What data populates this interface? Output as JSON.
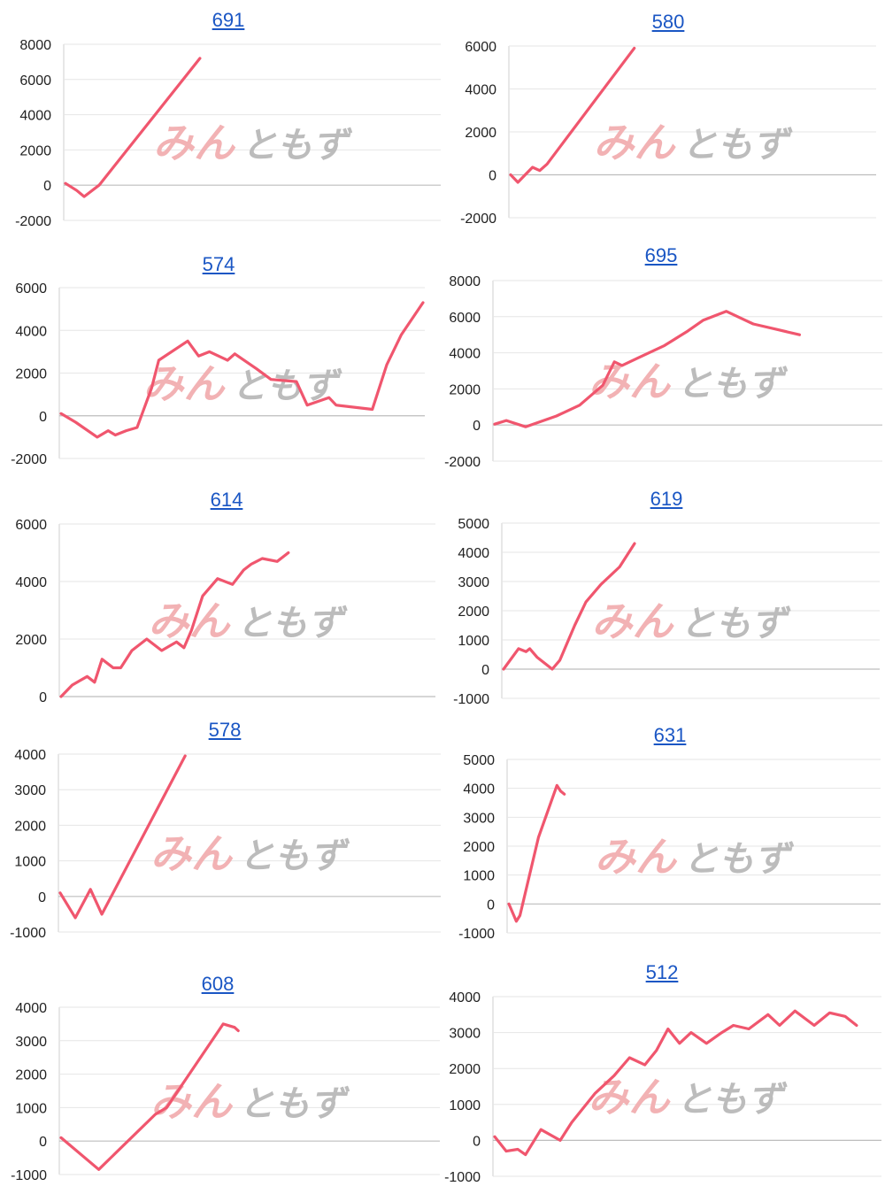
{
  "colors": {
    "series": "#f0566e",
    "link": "#1a56c4",
    "watermark_pink": "#f2aeb0",
    "watermark_gray": "#b9b9b9"
  },
  "watermark": {
    "part1": "みん",
    "part2": "ともず"
  },
  "chart_data": [
    {
      "type": "line",
      "title": "691",
      "ylim": [
        -2000,
        8000
      ],
      "yticks": [
        8000,
        6000,
        4000,
        2000,
        0,
        -2000
      ],
      "grid": true,
      "series": [
        {
          "x": [
            0,
            3,
            5,
            9,
            36
          ],
          "values": [
            100,
            -300,
            -650,
            0,
            7200
          ]
        }
      ]
    },
    {
      "type": "line",
      "title": "580",
      "ylim": [
        -2000,
        6000
      ],
      "yticks": [
        6000,
        4000,
        2000,
        0,
        -2000
      ],
      "grid": true,
      "series": [
        {
          "x": [
            0,
            2,
            4,
            6,
            8,
            10,
            34
          ],
          "values": [
            0,
            -350,
            0,
            350,
            200,
            500,
            5900
          ]
        }
      ]
    },
    {
      "type": "line",
      "title": "574",
      "ylim": [
        -2000,
        6000
      ],
      "yticks": [
        6000,
        4000,
        2000,
        0,
        -2000
      ],
      "grid": true,
      "series": [
        {
          "x": [
            0,
            4,
            10,
            13,
            15,
            18,
            21,
            25,
            27,
            35,
            38,
            41,
            46,
            48,
            54,
            58,
            65,
            68,
            74,
            76,
            86,
            90,
            94,
            100
          ],
          "values": [
            100,
            -300,
            -1000,
            -700,
            -900,
            -700,
            -550,
            1300,
            2600,
            3500,
            2800,
            3000,
            2600,
            2900,
            2200,
            1700,
            1600,
            500,
            850,
            500,
            300,
            2400,
            3800,
            5300
          ]
        }
      ]
    },
    {
      "type": "line",
      "title": "695",
      "ylim": [
        -2000,
        8000
      ],
      "yticks": [
        8000,
        6000,
        4000,
        2000,
        0,
        -2000
      ],
      "grid": true,
      "series": [
        {
          "x": [
            0,
            3,
            8,
            16,
            22,
            28,
            31,
            33,
            37,
            44,
            50,
            54,
            60,
            65,
            67,
            73,
            79
          ],
          "values": [
            50,
            250,
            -100,
            500,
            1100,
            2200,
            3500,
            3300,
            3700,
            4400,
            5200,
            5800,
            6300,
            5800,
            5600,
            5300,
            5000
          ]
        }
      ]
    },
    {
      "type": "line",
      "title": "614",
      "ylim": [
        0,
        6000
      ],
      "yticks": [
        6000,
        4000,
        2000,
        0
      ],
      "grid": true,
      "series": [
        {
          "x": [
            0,
            3,
            5,
            7,
            9,
            11,
            14,
            16,
            19,
            23,
            27,
            31,
            33,
            35,
            38,
            42,
            46,
            49,
            51,
            54,
            58,
            61
          ],
          "values": [
            0,
            400,
            550,
            700,
            500,
            1300,
            1000,
            1000,
            1600,
            2000,
            1600,
            1900,
            1700,
            2300,
            3500,
            4100,
            3900,
            4400,
            4600,
            4800,
            4700,
            5000
          ]
        }
      ]
    },
    {
      "type": "line",
      "title": "619",
      "ylim": [
        -1000,
        5000
      ],
      "yticks": [
        5000,
        4000,
        3000,
        2000,
        1000,
        0,
        -1000
      ],
      "grid": true,
      "series": [
        {
          "x": [
            0,
            4,
            6,
            7,
            9,
            13,
            15,
            19,
            22,
            26,
            31,
            35
          ],
          "values": [
            0,
            700,
            600,
            700,
            400,
            0,
            300,
            1500,
            2300,
            2900,
            3500,
            4300
          ]
        }
      ]
    },
    {
      "type": "line",
      "title": "578",
      "ylim": [
        -1000,
        4000
      ],
      "yticks": [
        4000,
        3000,
        2000,
        1000,
        0,
        -1000
      ],
      "grid": true,
      "series": [
        {
          "x": [
            0,
            4,
            8,
            11,
            33
          ],
          "values": [
            100,
            -600,
            200,
            -500,
            3950
          ]
        }
      ]
    },
    {
      "type": "line",
      "title": "631",
      "ylim": [
        -1000,
        5000
      ],
      "yticks": [
        5000,
        4000,
        3000,
        2000,
        1000,
        0,
        -1000
      ],
      "grid": true,
      "series": [
        {
          "x": [
            0,
            2,
            3,
            8,
            13,
            14,
            15
          ],
          "values": [
            0,
            -600,
            -400,
            2300,
            4100,
            3900,
            3800
          ]
        }
      ]
    },
    {
      "type": "line",
      "title": "608",
      "ylim": [
        -1000,
        4000
      ],
      "yticks": [
        4000,
        3000,
        2000,
        1000,
        0,
        -1000
      ],
      "grid": true,
      "series": [
        {
          "x": [
            0,
            10,
            25,
            28,
            43,
            46,
            47
          ],
          "values": [
            100,
            -850,
            800,
            1000,
            3500,
            3400,
            3300
          ]
        }
      ]
    },
    {
      "type": "line",
      "title": "512",
      "ylim": [
        -1000,
        4000
      ],
      "yticks": [
        4000,
        3000,
        2000,
        1000,
        0,
        -1000
      ],
      "grid": true,
      "series": [
        {
          "x": [
            0,
            3,
            6,
            8,
            12,
            17,
            20,
            26,
            31,
            35,
            39,
            42,
            45,
            48,
            51,
            55,
            59,
            62,
            66,
            71,
            74,
            78,
            83,
            87,
            91,
            94
          ],
          "values": [
            100,
            -300,
            -250,
            -400,
            300,
            0,
            500,
            1300,
            1800,
            2300,
            2100,
            2500,
            3100,
            2700,
            3000,
            2700,
            3000,
            3200,
            3100,
            3500,
            3200,
            3600,
            3200,
            3550,
            3450,
            3200
          ]
        }
      ]
    }
  ]
}
